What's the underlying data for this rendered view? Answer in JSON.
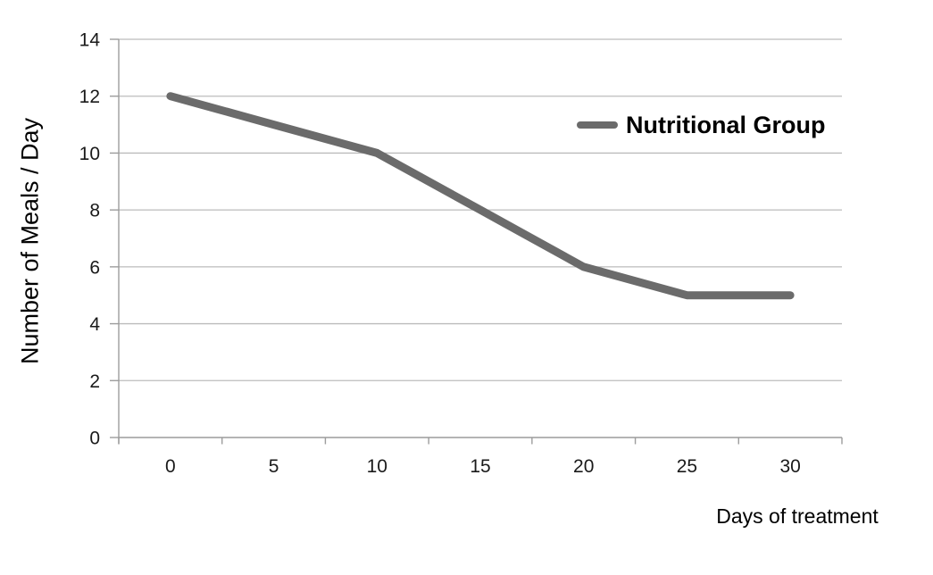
{
  "chart_data": {
    "type": "line",
    "title": "",
    "xlabel": "Days of treatment",
    "ylabel": "Number of Meals / Day",
    "x": [
      0,
      5,
      10,
      15,
      20,
      25,
      30
    ],
    "series": [
      {
        "name": "Nutritional Group",
        "color": "#6b6b6b",
        "values": [
          12,
          11,
          10,
          8,
          6,
          5,
          5
        ]
      }
    ],
    "ylim": [
      0,
      14
    ],
    "ytick_step": 2,
    "yticks": [
      0,
      2,
      4,
      6,
      8,
      10,
      12,
      14
    ],
    "grid": "horizontal",
    "legend_position": "inside-top-right",
    "grid_color": "#bcbcbc",
    "axis_color": "#9c9c9c",
    "tick_label_color": "#1a1a1a",
    "background_color": "#ffffff"
  }
}
